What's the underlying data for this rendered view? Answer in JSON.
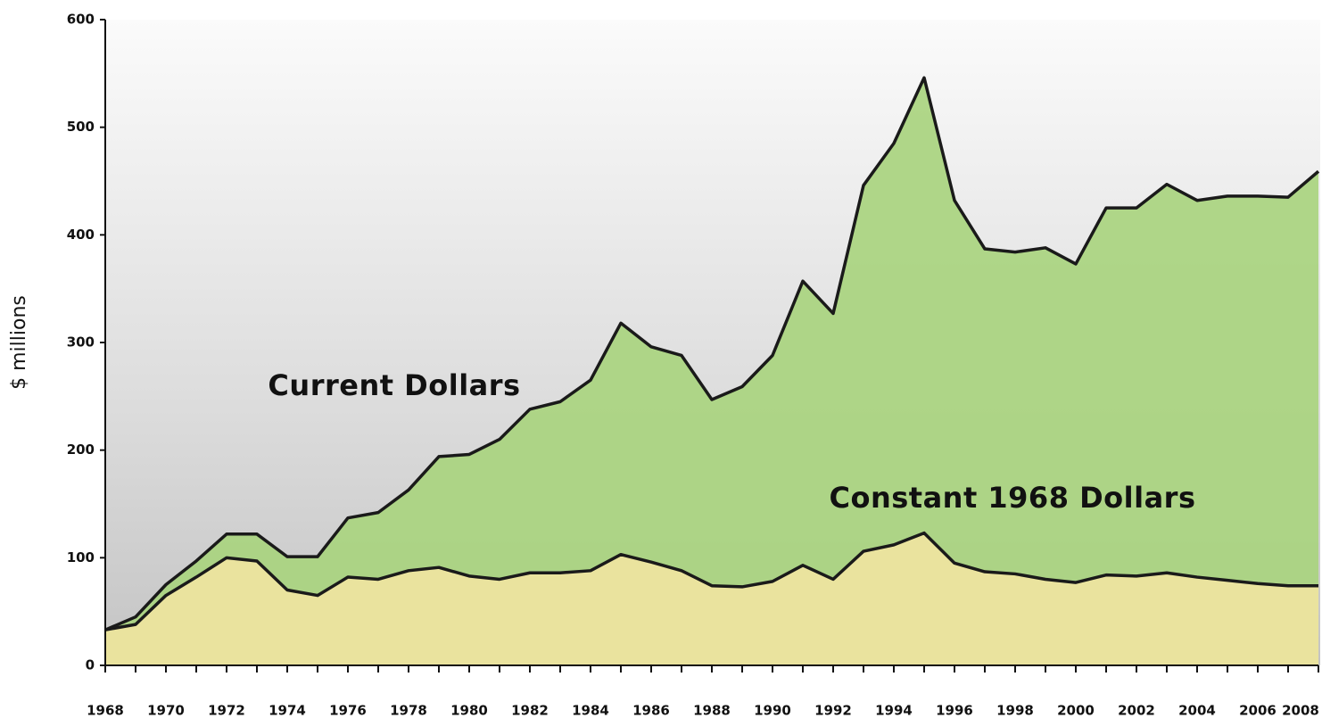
{
  "chart_data": {
    "type": "area",
    "y_label": "$ millions",
    "annotations": [
      "Current Dollars",
      "Constant 1968 Dollars"
    ],
    "x": [
      1968,
      1969,
      1970,
      1971,
      1972,
      1973,
      1974,
      1975,
      1976,
      1977,
      1978,
      1979,
      1980,
      1981,
      1982,
      1983,
      1984,
      1985,
      1986,
      1987,
      1988,
      1989,
      1990,
      1991,
      1992,
      1993,
      1994,
      1995,
      1996,
      1997,
      1998,
      1999,
      2000,
      2001,
      2002,
      2003,
      2004,
      2005,
      2006,
      2007,
      2008
    ],
    "series": [
      {
        "name": "Current Dollars",
        "color": "#a9d47f",
        "values": [
          33,
          45,
          75,
          97,
          122,
          122,
          101,
          101,
          137,
          142,
          163,
          194,
          196,
          210,
          238,
          245,
          265,
          318,
          296,
          288,
          247,
          259,
          288,
          357,
          327,
          446,
          485,
          546,
          432,
          387,
          384,
          388,
          373,
          425,
          425,
          447,
          432,
          436,
          436,
          435,
          459
        ]
      },
      {
        "name": "Constant 1968 Dollars",
        "color": "#efe4a1",
        "values": [
          33,
          38,
          65,
          82,
          100,
          97,
          70,
          65,
          82,
          80,
          88,
          91,
          83,
          80,
          86,
          86,
          88,
          103,
          96,
          88,
          74,
          73,
          78,
          93,
          80,
          106,
          112,
          123,
          95,
          87,
          85,
          80,
          77,
          84,
          83,
          86,
          82,
          79,
          76,
          74,
          74
        ]
      }
    ],
    "line_color": "#1a1a1a",
    "xlim": [
      1968,
      2008
    ],
    "xticks": [
      1968,
      1970,
      1972,
      1974,
      1976,
      1978,
      1980,
      1982,
      1984,
      1986,
      1988,
      1990,
      1992,
      1994,
      1996,
      1998,
      2000,
      2002,
      2004,
      2006,
      2008
    ],
    "ylim": [
      0,
      600
    ],
    "yticks": [
      0,
      100,
      200,
      300,
      400,
      500,
      600
    ]
  }
}
